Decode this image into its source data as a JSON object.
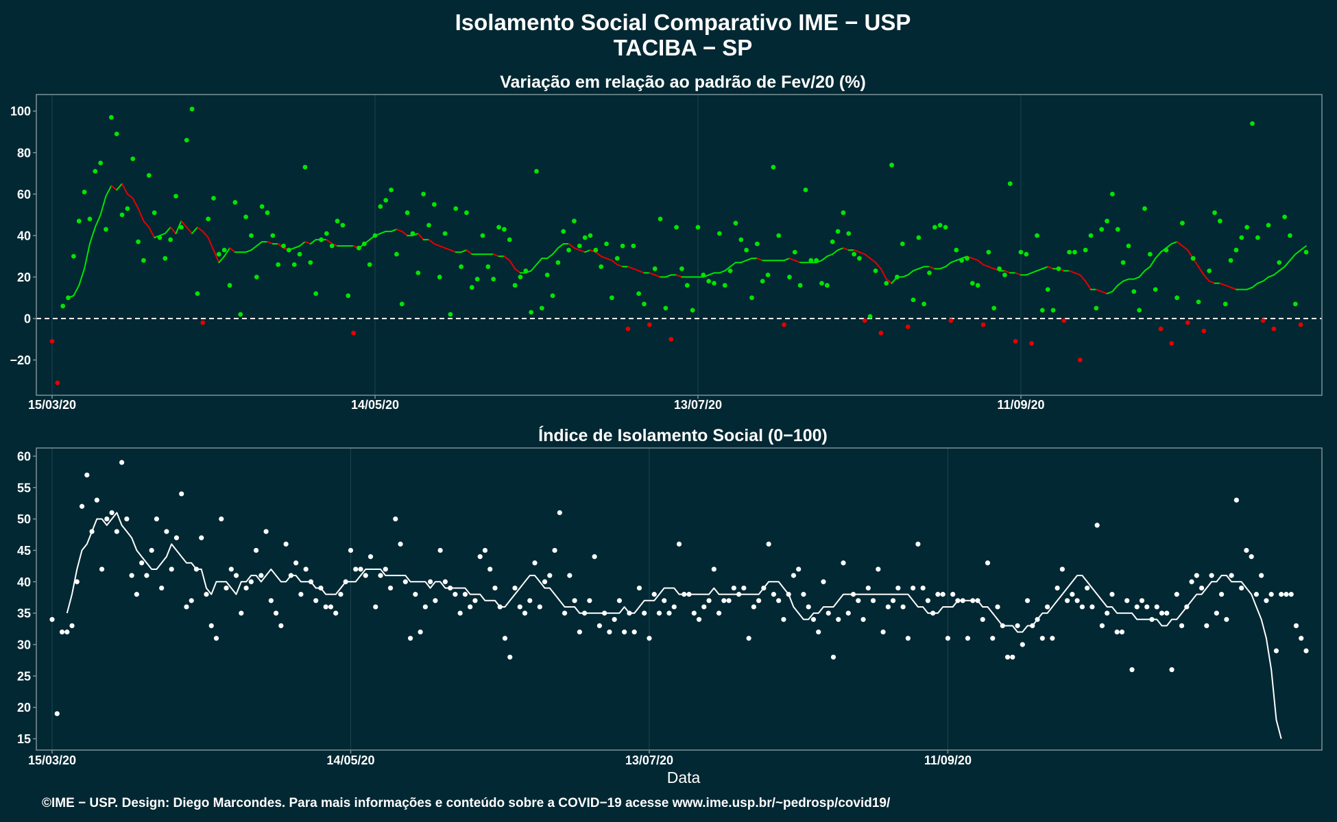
{
  "title": "Isolamento Social Comparativo IME − USP",
  "subtitle": "TACIBA − SP",
  "xlabel": "Data",
  "caption": "©IME − USP. Design: Diego Marcondes. Para mais informações e conteúdo sobre a COVID−19 acesse www.ime.usp.br/~pedrosp/covid19/",
  "colors": {
    "background": "#022833",
    "panel_border": "#7d9299",
    "grid": "#1d4550",
    "text": "#ffffff",
    "positive": "#00e600",
    "negative": "#e60000",
    "index": "#ffffff"
  },
  "chart_data": [
    {
      "type": "scatter",
      "title": "Variação em relação ao padrão de Fev/20 (%)",
      "x_start": "2020-03-15",
      "x_end": "2020-10-31",
      "x_ticks": [
        "15/03/20",
        "14/05/20",
        "13/07/20",
        "11/09/20"
      ],
      "ylim": [
        -37,
        108
      ],
      "y_ticks": [
        -20,
        0,
        20,
        40,
        60,
        80,
        100
      ],
      "y_tick_labels": [
        "−20",
        "0",
        "20",
        "40",
        "60",
        "80",
        "100"
      ],
      "reference_line": 0,
      "series": [
        {
          "kind": "points",
          "values": [
            -11,
            -31,
            6,
            10,
            30,
            47,
            61,
            48,
            71,
            75,
            43,
            97,
            89,
            50,
            53,
            77,
            37,
            28,
            69,
            51,
            39,
            29,
            38,
            59,
            44,
            86,
            101,
            12,
            -2,
            48,
            58,
            31,
            33,
            16,
            56,
            2,
            49,
            40,
            20,
            54,
            51,
            40,
            26,
            35,
            33,
            26,
            31,
            73,
            27,
            12,
            38,
            41,
            35,
            47,
            45,
            11,
            -7,
            34,
            36,
            26,
            40,
            54,
            57,
            62,
            31,
            7,
            51,
            41,
            22,
            60,
            45,
            55,
            20,
            41,
            2,
            53,
            25,
            51,
            15,
            19,
            40,
            25,
            19,
            44,
            43,
            38,
            16,
            20,
            23,
            3,
            71,
            5,
            21,
            11,
            27,
            42,
            33,
            47,
            35,
            39,
            40,
            33,
            25,
            36,
            10,
            29,
            35,
            -5,
            35,
            12,
            7,
            -3,
            24,
            48,
            5,
            -10,
            44,
            24,
            16,
            4,
            44,
            21,
            18,
            17,
            41,
            16,
            23,
            46,
            38,
            33,
            10,
            36,
            18,
            21,
            73,
            40,
            -3,
            20,
            32,
            16,
            62,
            28,
            28,
            17,
            16,
            37,
            42,
            51,
            41,
            31,
            29,
            -1,
            1,
            23,
            -7,
            17,
            74,
            20,
            36,
            -4,
            9,
            39,
            7,
            22,
            44,
            45,
            44,
            -1,
            33,
            28,
            29,
            17,
            16,
            -3,
            32,
            5,
            24,
            21,
            65,
            -11,
            32,
            31,
            -12,
            40,
            4,
            14,
            4,
            24,
            -1,
            32,
            32,
            -20,
            33,
            40,
            5,
            43,
            47,
            60,
            43,
            27,
            35,
            13,
            4,
            53,
            31,
            14,
            -5,
            33,
            -12,
            10,
            46,
            -2,
            29,
            8,
            -6,
            23,
            51,
            47,
            7,
            28,
            33,
            39,
            44,
            94,
            39,
            -1,
            45,
            -5,
            27,
            49,
            40,
            7,
            -3,
            32
          ]
        },
        {
          "kind": "moving_average",
          "values": [
            null,
            null,
            null,
            10,
            11,
            16,
            24,
            36,
            44,
            50,
            59,
            64,
            62,
            65,
            60,
            58,
            53,
            47,
            44,
            39,
            40,
            41,
            44,
            41,
            47,
            44,
            41,
            44,
            42,
            39,
            33,
            27,
            30,
            34,
            32,
            32,
            32,
            33,
            35,
            37,
            37,
            36,
            36,
            34,
            33,
            34,
            35,
            37,
            36,
            38,
            38,
            38,
            36,
            35,
            35,
            35,
            35,
            34,
            36,
            38,
            40,
            41,
            42,
            42,
            43,
            42,
            40,
            40,
            41,
            38,
            38,
            36,
            35,
            34,
            33,
            32,
            32,
            33,
            31,
            31,
            31,
            31,
            31,
            30,
            30,
            28,
            24,
            22,
            22,
            23,
            26,
            29,
            29,
            31,
            34,
            36,
            36,
            34,
            33,
            32,
            33,
            32,
            30,
            29,
            28,
            26,
            25,
            25,
            24,
            23,
            22,
            22,
            21,
            20,
            20,
            21,
            21,
            20,
            20,
            20,
            20,
            20,
            21,
            22,
            22,
            23,
            25,
            27,
            27,
            28,
            29,
            29,
            28,
            28,
            28,
            28,
            28,
            29,
            28,
            27,
            27,
            27,
            27,
            28,
            30,
            31,
            33,
            34,
            33,
            33,
            32,
            31,
            29,
            27,
            24,
            19,
            17,
            20,
            20,
            21,
            23,
            24,
            25,
            25,
            24,
            24,
            25,
            27,
            28,
            29,
            30,
            29,
            28,
            26,
            25,
            24,
            23,
            23,
            22,
            22,
            21,
            21,
            22,
            23,
            24,
            25,
            24,
            24,
            23,
            23,
            22,
            21,
            18,
            14,
            14,
            13,
            12,
            13,
            16,
            18,
            19,
            19,
            20,
            23,
            25,
            29,
            32,
            34,
            36,
            37,
            35,
            33,
            29,
            25,
            21,
            18,
            17,
            17,
            16,
            15,
            14,
            14,
            14,
            15,
            17,
            18,
            20,
            21,
            23,
            25,
            28,
            31,
            33,
            35,
            37,
            38,
            38,
            38,
            37,
            35,
            31,
            27,
            24,
            22,
            21
          ]
        }
      ]
    },
    {
      "type": "scatter",
      "title": "Índice de Isolamento Social (0−100)",
      "x_start": "2020-03-15",
      "x_end": "2020-10-31",
      "x_ticks": [
        "15/03/20",
        "14/05/20",
        "13/07/20",
        "11/09/20"
      ],
      "ylim": [
        13.2,
        61.3
      ],
      "y_ticks": [
        15,
        20,
        25,
        30,
        35,
        40,
        45,
        50,
        55,
        60
      ],
      "y_tick_labels": [
        "15",
        "20",
        "25",
        "30",
        "35",
        "40",
        "45",
        "50",
        "55",
        "60"
      ],
      "series": [
        {
          "kind": "points",
          "values": [
            34,
            19,
            32,
            32,
            33,
            40,
            52,
            57,
            48,
            53,
            42,
            50,
            51,
            48,
            59,
            50,
            41,
            38,
            43,
            41,
            45,
            50,
            39,
            48,
            42,
            47,
            54,
            36,
            37,
            42,
            47,
            38,
            33,
            31,
            50,
            39,
            42,
            41,
            35,
            39,
            40,
            45,
            41,
            48,
            37,
            35,
            33,
            46,
            41,
            43,
            38,
            42,
            40,
            37,
            39,
            36,
            36,
            35,
            38,
            40,
            45,
            42,
            42,
            41,
            44,
            36,
            41,
            42,
            39,
            50,
            46,
            40,
            31,
            38,
            32,
            36,
            40,
            37,
            45,
            40,
            39,
            38,
            35,
            38,
            36,
            37,
            44,
            45,
            42,
            39,
            36,
            31,
            28,
            39,
            36,
            35,
            37,
            43,
            36,
            40,
            41,
            45,
            51,
            35,
            41,
            37,
            32,
            35,
            37,
            44,
            33,
            35,
            32,
            34,
            37,
            32,
            35,
            32,
            39,
            35,
            31,
            38,
            35,
            37,
            35,
            36,
            46,
            38,
            38,
            35,
            34,
            36,
            37,
            42,
            35,
            37,
            37,
            39,
            38,
            39,
            31,
            36,
            37,
            39,
            46,
            38,
            37,
            34,
            38,
            41,
            42,
            38,
            36,
            34,
            32,
            40,
            35,
            28,
            34,
            43,
            35,
            38,
            37,
            34,
            39,
            37,
            42,
            32,
            36,
            37,
            39,
            36,
            31,
            39,
            46,
            39,
            37,
            35,
            38,
            38,
            31,
            38,
            37,
            37,
            31,
            37,
            37,
            34,
            43,
            31,
            36,
            33,
            28,
            28,
            33,
            30,
            37,
            33,
            34,
            31,
            36,
            31,
            39,
            42,
            37,
            38,
            37,
            36,
            39,
            36,
            49,
            33,
            35,
            38,
            32,
            32,
            37,
            26,
            36,
            37,
            36,
            34,
            36,
            35,
            35,
            26,
            38,
            33,
            36,
            40,
            41,
            39,
            33,
            41,
            35,
            38,
            34,
            41,
            53,
            39,
            45,
            44,
            38,
            41,
            37,
            38,
            29,
            38,
            38,
            38,
            33,
            31,
            29
          ]
        },
        {
          "kind": "moving_average",
          "values": [
            null,
            null,
            null,
            35,
            38,
            42,
            45,
            46,
            48,
            50,
            50,
            49,
            50,
            51,
            49,
            48,
            47,
            45,
            44,
            43,
            42,
            42,
            43,
            44,
            46,
            45,
            44,
            43,
            43,
            42,
            42,
            39,
            38,
            40,
            40,
            40,
            39,
            38,
            40,
            40,
            41,
            41,
            40,
            41,
            42,
            41,
            40,
            40,
            41,
            41,
            40,
            40,
            40,
            39,
            39,
            38,
            38,
            38,
            39,
            40,
            40,
            40,
            41,
            42,
            42,
            42,
            42,
            41,
            41,
            41,
            41,
            41,
            40,
            40,
            40,
            40,
            39,
            40,
            40,
            39,
            39,
            39,
            39,
            39,
            38,
            38,
            38,
            37,
            37,
            37,
            36,
            36,
            37,
            38,
            39,
            40,
            41,
            41,
            40,
            39,
            39,
            38,
            37,
            36,
            36,
            36,
            35,
            35,
            35,
            35,
            35,
            35,
            35,
            35,
            35,
            36,
            35,
            35,
            36,
            37,
            37,
            37,
            38,
            39,
            39,
            39,
            38,
            38,
            38,
            38,
            38,
            38,
            38,
            39,
            38,
            38,
            38,
            38,
            38,
            38,
            38,
            38,
            38,
            39,
            40,
            40,
            40,
            39,
            38,
            36,
            35,
            34,
            34,
            35,
            35,
            36,
            36,
            36,
            37,
            38,
            38,
            38,
            38,
            38,
            38,
            38,
            38,
            38,
            38,
            38,
            38,
            38,
            38,
            37,
            36,
            36,
            35,
            35,
            35,
            36,
            36,
            36,
            37,
            37,
            37,
            37,
            37,
            36,
            36,
            35,
            34,
            33,
            33,
            33,
            32,
            32,
            33,
            33,
            34,
            35,
            35,
            36,
            37,
            38,
            39,
            40,
            41,
            41,
            40,
            39,
            38,
            37,
            36,
            36,
            35,
            35,
            35,
            35,
            34,
            34,
            34,
            34,
            34,
            33,
            33,
            34,
            34,
            35,
            36,
            37,
            38,
            38,
            39,
            40,
            40,
            41,
            41,
            40,
            40,
            40,
            39,
            38,
            36,
            34,
            31,
            26,
            18,
            15
          ]
        }
      ]
    }
  ]
}
